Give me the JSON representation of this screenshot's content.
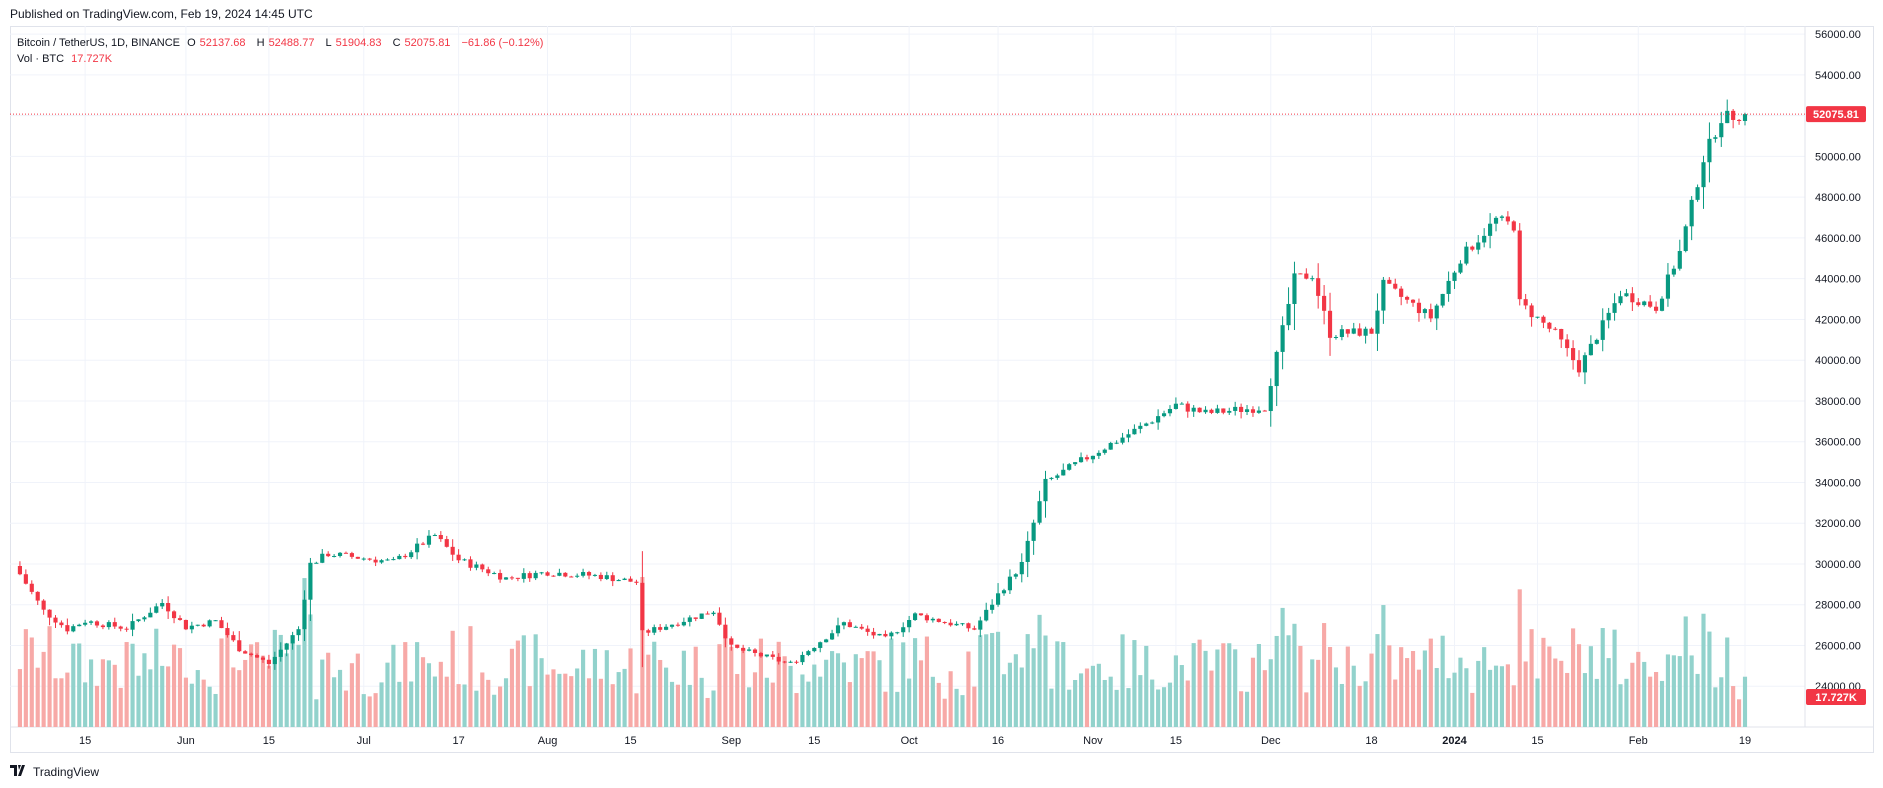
{
  "header": {
    "published": "Published on TradingView.com, Feb 19, 2024 14:45 UTC"
  },
  "legend": {
    "symbol": "Bitcoin / TetherUS, 1D, BINANCE",
    "o_label": "O",
    "o": "52137.68",
    "h_label": "H",
    "h": "52488.77",
    "l_label": "L",
    "l": "51904.83",
    "c_label": "C",
    "c": "52075.81",
    "change": "−61.86 (−0.12%)",
    "vol_label": "Vol · BTC",
    "vol_value": "17.727K"
  },
  "price_tag": "52075.81",
  "volume_tag": "17.727K",
  "footer": {
    "brand": "TradingView"
  },
  "colors": {
    "up": "#089981",
    "down": "#f23645",
    "up_vol": "#92d2cc",
    "down_vol": "#f7a9a7",
    "grid": "#f0f3fa"
  },
  "chart_data": {
    "type": "candlestick",
    "y_axis_ticks": [
      "24000.00",
      "26000.00",
      "28000.00",
      "30000.00",
      "32000.00",
      "34000.00",
      "36000.00",
      "38000.00",
      "40000.00",
      "42000.00",
      "44000.00",
      "46000.00",
      "48000.00",
      "50000.00",
      "52000.00",
      "54000.00",
      "56000.00"
    ],
    "ylim": [
      22000,
      56400
    ],
    "x_tick_labels": [
      {
        "label": "15",
        "bold": false
      },
      {
        "label": "Jun",
        "bold": false
      },
      {
        "label": "15",
        "bold": false
      },
      {
        "label": "Jul",
        "bold": false
      },
      {
        "label": "17",
        "bold": false
      },
      {
        "label": "Aug",
        "bold": false
      },
      {
        "label": "15",
        "bold": false
      },
      {
        "label": "Sep",
        "bold": false
      },
      {
        "label": "15",
        "bold": false
      },
      {
        "label": "Oct",
        "bold": false
      },
      {
        "label": "16",
        "bold": false
      },
      {
        "label": "Nov",
        "bold": false
      },
      {
        "label": "15",
        "bold": false
      },
      {
        "label": "Dec",
        "bold": false
      },
      {
        "label": "18",
        "bold": false
      },
      {
        "label": "2024",
        "bold": true
      },
      {
        "label": "15",
        "bold": false
      },
      {
        "label": "Feb",
        "bold": false
      },
      {
        "label": "19",
        "bold": false
      }
    ],
    "last_price": 52075.81,
    "ohlc_keypoints": [
      {
        "date": "2023-05-04",
        "close": 29500
      },
      {
        "date": "2023-05-08",
        "close": 27700
      },
      {
        "date": "2023-05-12",
        "close": 26800
      },
      {
        "date": "2023-05-15",
        "close": 27200
      },
      {
        "date": "2023-05-22",
        "close": 26850
      },
      {
        "date": "2023-05-28",
        "close": 28100
      },
      {
        "date": "2023-06-01",
        "close": 26900
      },
      {
        "date": "2023-06-06",
        "close": 27200
      },
      {
        "date": "2023-06-10",
        "close": 25850
      },
      {
        "date": "2023-06-15",
        "close": 25100
      },
      {
        "date": "2023-06-20",
        "close": 26800
      },
      {
        "date": "2023-06-22",
        "close": 30000
      },
      {
        "date": "2023-06-25",
        "close": 30500
      },
      {
        "date": "2023-07-06",
        "close": 30100
      },
      {
        "date": "2023-07-13",
        "close": 31400
      },
      {
        "date": "2023-07-17",
        "close": 30200
      },
      {
        "date": "2023-07-25",
        "close": 29300
      },
      {
        "date": "2023-08-01",
        "close": 29600
      },
      {
        "date": "2023-08-10",
        "close": 29400
      },
      {
        "date": "2023-08-16",
        "close": 29100
      },
      {
        "date": "2023-08-17",
        "close": 26600
      },
      {
        "date": "2023-08-29",
        "close": 27700
      },
      {
        "date": "2023-09-01",
        "close": 25900
      },
      {
        "date": "2023-09-11",
        "close": 25100
      },
      {
        "date": "2023-09-20",
        "close": 27100
      },
      {
        "date": "2023-09-27",
        "close": 26300
      },
      {
        "date": "2023-10-02",
        "close": 27500
      },
      {
        "date": "2023-10-12",
        "close": 26800
      },
      {
        "date": "2023-10-16",
        "close": 28500
      },
      {
        "date": "2023-10-20",
        "close": 30000
      },
      {
        "date": "2023-10-24",
        "close": 34000
      },
      {
        "date": "2023-11-01",
        "close": 35400
      },
      {
        "date": "2023-11-09",
        "close": 36700
      },
      {
        "date": "2023-11-15",
        "close": 37800
      },
      {
        "date": "2023-11-20",
        "close": 37400
      },
      {
        "date": "2023-11-30",
        "close": 37700
      },
      {
        "date": "2023-12-05",
        "close": 44000
      },
      {
        "date": "2023-12-08",
        "close": 44200
      },
      {
        "date": "2023-12-11",
        "close": 41300
      },
      {
        "date": "2023-12-18",
        "close": 41400
      },
      {
        "date": "2023-12-20",
        "close": 43700
      },
      {
        "date": "2023-12-28",
        "close": 42100
      },
      {
        "date": "2024-01-02",
        "close": 45000
      },
      {
        "date": "2024-01-08",
        "close": 46900
      },
      {
        "date": "2024-01-11",
        "close": 46600
      },
      {
        "date": "2024-01-12",
        "close": 42800
      },
      {
        "date": "2024-01-18",
        "close": 41300
      },
      {
        "date": "2024-01-22",
        "close": 39600
      },
      {
        "date": "2024-01-29",
        "close": 43300
      },
      {
        "date": "2024-02-04",
        "close": 42600
      },
      {
        "date": "2024-02-08",
        "close": 45300
      },
      {
        "date": "2024-02-12",
        "close": 49900
      },
      {
        "date": "2024-02-15",
        "close": 51900
      },
      {
        "date": "2024-02-19",
        "close": 52075.81
      }
    ]
  }
}
